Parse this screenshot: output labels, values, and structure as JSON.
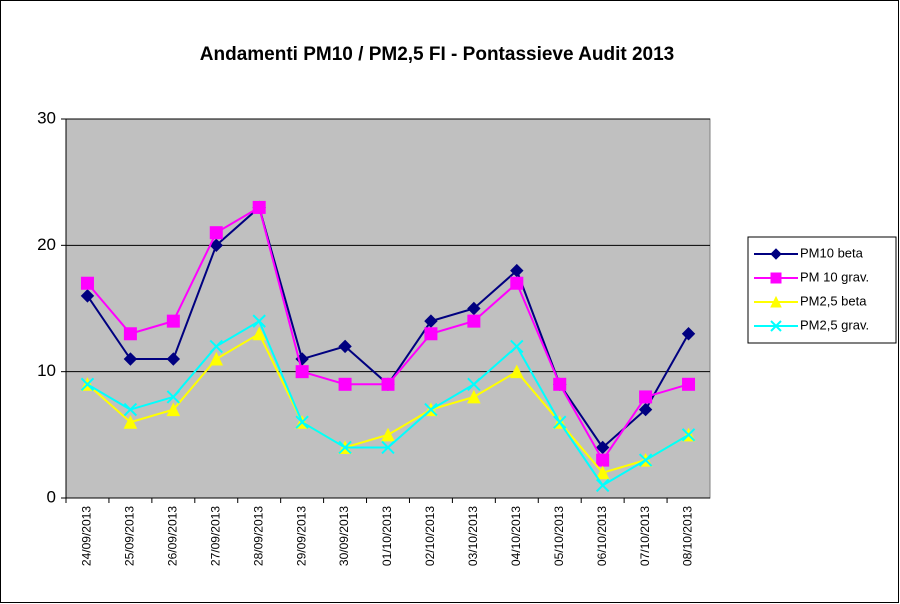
{
  "chart_data": {
    "type": "line",
    "title": "Andamenti PM10 / PM2,5 FI - Pontassieve Audit 2013",
    "categories": [
      "24/09/2013",
      "25/09/2013",
      "26/09/2013",
      "27/09/2013",
      "28/09/2013",
      "29/09/2013",
      "30/09/2013",
      "01/10/2013",
      "02/10/2013",
      "03/10/2013",
      "04/10/2013",
      "05/10/2013",
      "06/10/2013",
      "07/10/2013",
      "08/10/2013"
    ],
    "series": [
      {
        "name": "PM10 beta",
        "color": "#000080",
        "marker": "diamond",
        "values": [
          16,
          11,
          11,
          20,
          23,
          11,
          12,
          9,
          14,
          15,
          18,
          9,
          4,
          7,
          13
        ]
      },
      {
        "name": "PM 10 grav.",
        "color": "#FF00FF",
        "marker": "square",
        "values": [
          17,
          13,
          14,
          21,
          23,
          10,
          9,
          9,
          13,
          14,
          17,
          9,
          3,
          8,
          9
        ]
      },
      {
        "name": "PM2,5 beta",
        "color": "#FFFF00",
        "marker": "triangle",
        "values": [
          9,
          6,
          7,
          11,
          13,
          6,
          4,
          5,
          7,
          8,
          10,
          6,
          2,
          3,
          5
        ]
      },
      {
        "name": "PM2,5 grav.",
        "color": "#00FFFF",
        "marker": "x",
        "values": [
          9,
          7,
          8,
          12,
          14,
          6,
          4,
          4,
          7,
          9,
          12,
          6,
          1,
          3,
          5
        ]
      }
    ],
    "ylim": [
      0,
      30
    ],
    "yticks": [
      0,
      10,
      20,
      30
    ],
    "grid": true,
    "legend": "right",
    "plot_background": "#C0C0C0"
  }
}
